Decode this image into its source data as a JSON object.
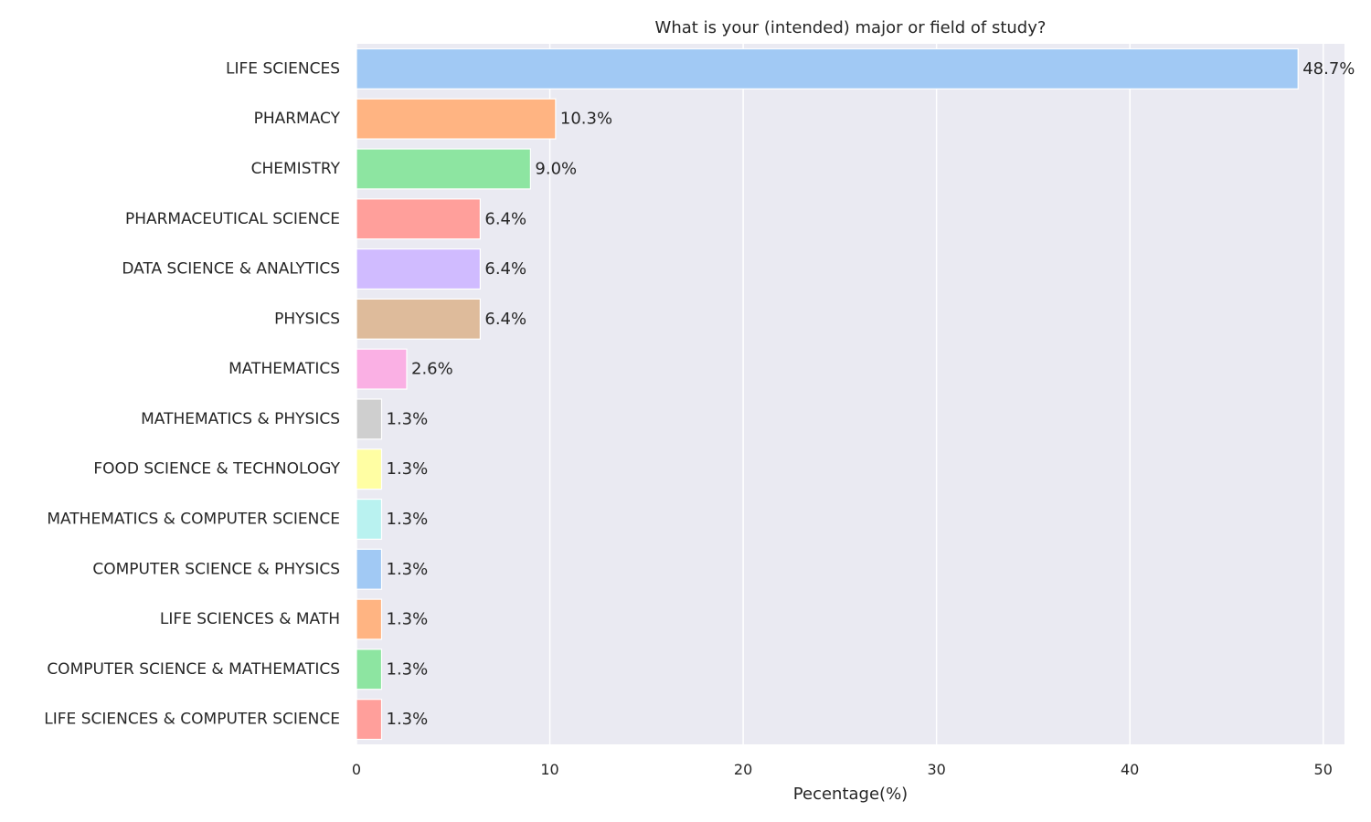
{
  "chart_data": {
    "type": "bar",
    "orientation": "horizontal",
    "title": "What is your (intended) major or field of study?",
    "xlabel": "Pecentage(%)",
    "ylabel": "",
    "xlim": [
      0,
      51.1
    ],
    "xticks": [
      0,
      10,
      20,
      30,
      40,
      50
    ],
    "grid": true,
    "categories": [
      "LIFE SCIENCES",
      "PHARMACY",
      "CHEMISTRY",
      "PHARMACEUTICAL SCIENCE",
      "DATA SCIENCE & ANALYTICS",
      "PHYSICS",
      "MATHEMATICS",
      "MATHEMATICS & PHYSICS",
      "FOOD SCIENCE & TECHNOLOGY",
      "MATHEMATICS & COMPUTER SCIENCE ",
      "COMPUTER SCIENCE & PHYSICS",
      "LIFE SCIENCES & MATH",
      "COMPUTER SCIENCE & MATHEMATICS",
      "LIFE SCIENCES & COMPUTER SCIENCE"
    ],
    "values": [
      48.7,
      10.3,
      9.0,
      6.4,
      6.4,
      6.4,
      2.6,
      1.3,
      1.3,
      1.3,
      1.3,
      1.3,
      1.3,
      1.3
    ],
    "data_labels": [
      "48.7%",
      "10.3%",
      "9.0%",
      "6.4%",
      "6.4%",
      "6.4%",
      "2.6%",
      "1.3%",
      "1.3%",
      "1.3%",
      "1.3%",
      "1.3%",
      "1.3%",
      "1.3%"
    ],
    "colors": [
      "#a1c9f4",
      "#ffb482",
      "#8de5a1",
      "#ff9f9b",
      "#d0bbff",
      "#debb9b",
      "#fab0e4",
      "#cfcfcf",
      "#fffea3",
      "#b9f2f0",
      "#a1c9f4",
      "#ffb482",
      "#8de5a1",
      "#ff9f9b"
    ],
    "background_color": "#eaeaf2",
    "grid_color": "#ffffff"
  }
}
